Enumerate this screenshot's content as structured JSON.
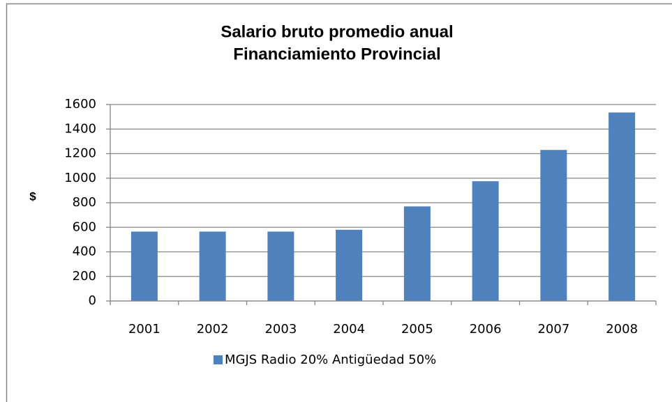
{
  "chart_data": {
    "type": "bar",
    "title": "Salario bruto promedio anual",
    "subtitle": "Financiamiento Provincial",
    "y_label": "$",
    "categories": [
      "2001",
      "2002",
      "2003",
      "2004",
      "2005",
      "2006",
      "2007",
      "2008"
    ],
    "series": [
      {
        "name": "MGJS Radio 20% Antigüedad 50%",
        "color": "#4f81bd",
        "values": [
          565,
          565,
          565,
          580,
          770,
          975,
          1230,
          1535
        ]
      }
    ],
    "ylim": [
      0,
      1600
    ],
    "yticks": [
      0,
      200,
      400,
      600,
      800,
      1000,
      1200,
      1400,
      1600
    ],
    "grid": true,
    "legend": "bottom"
  }
}
